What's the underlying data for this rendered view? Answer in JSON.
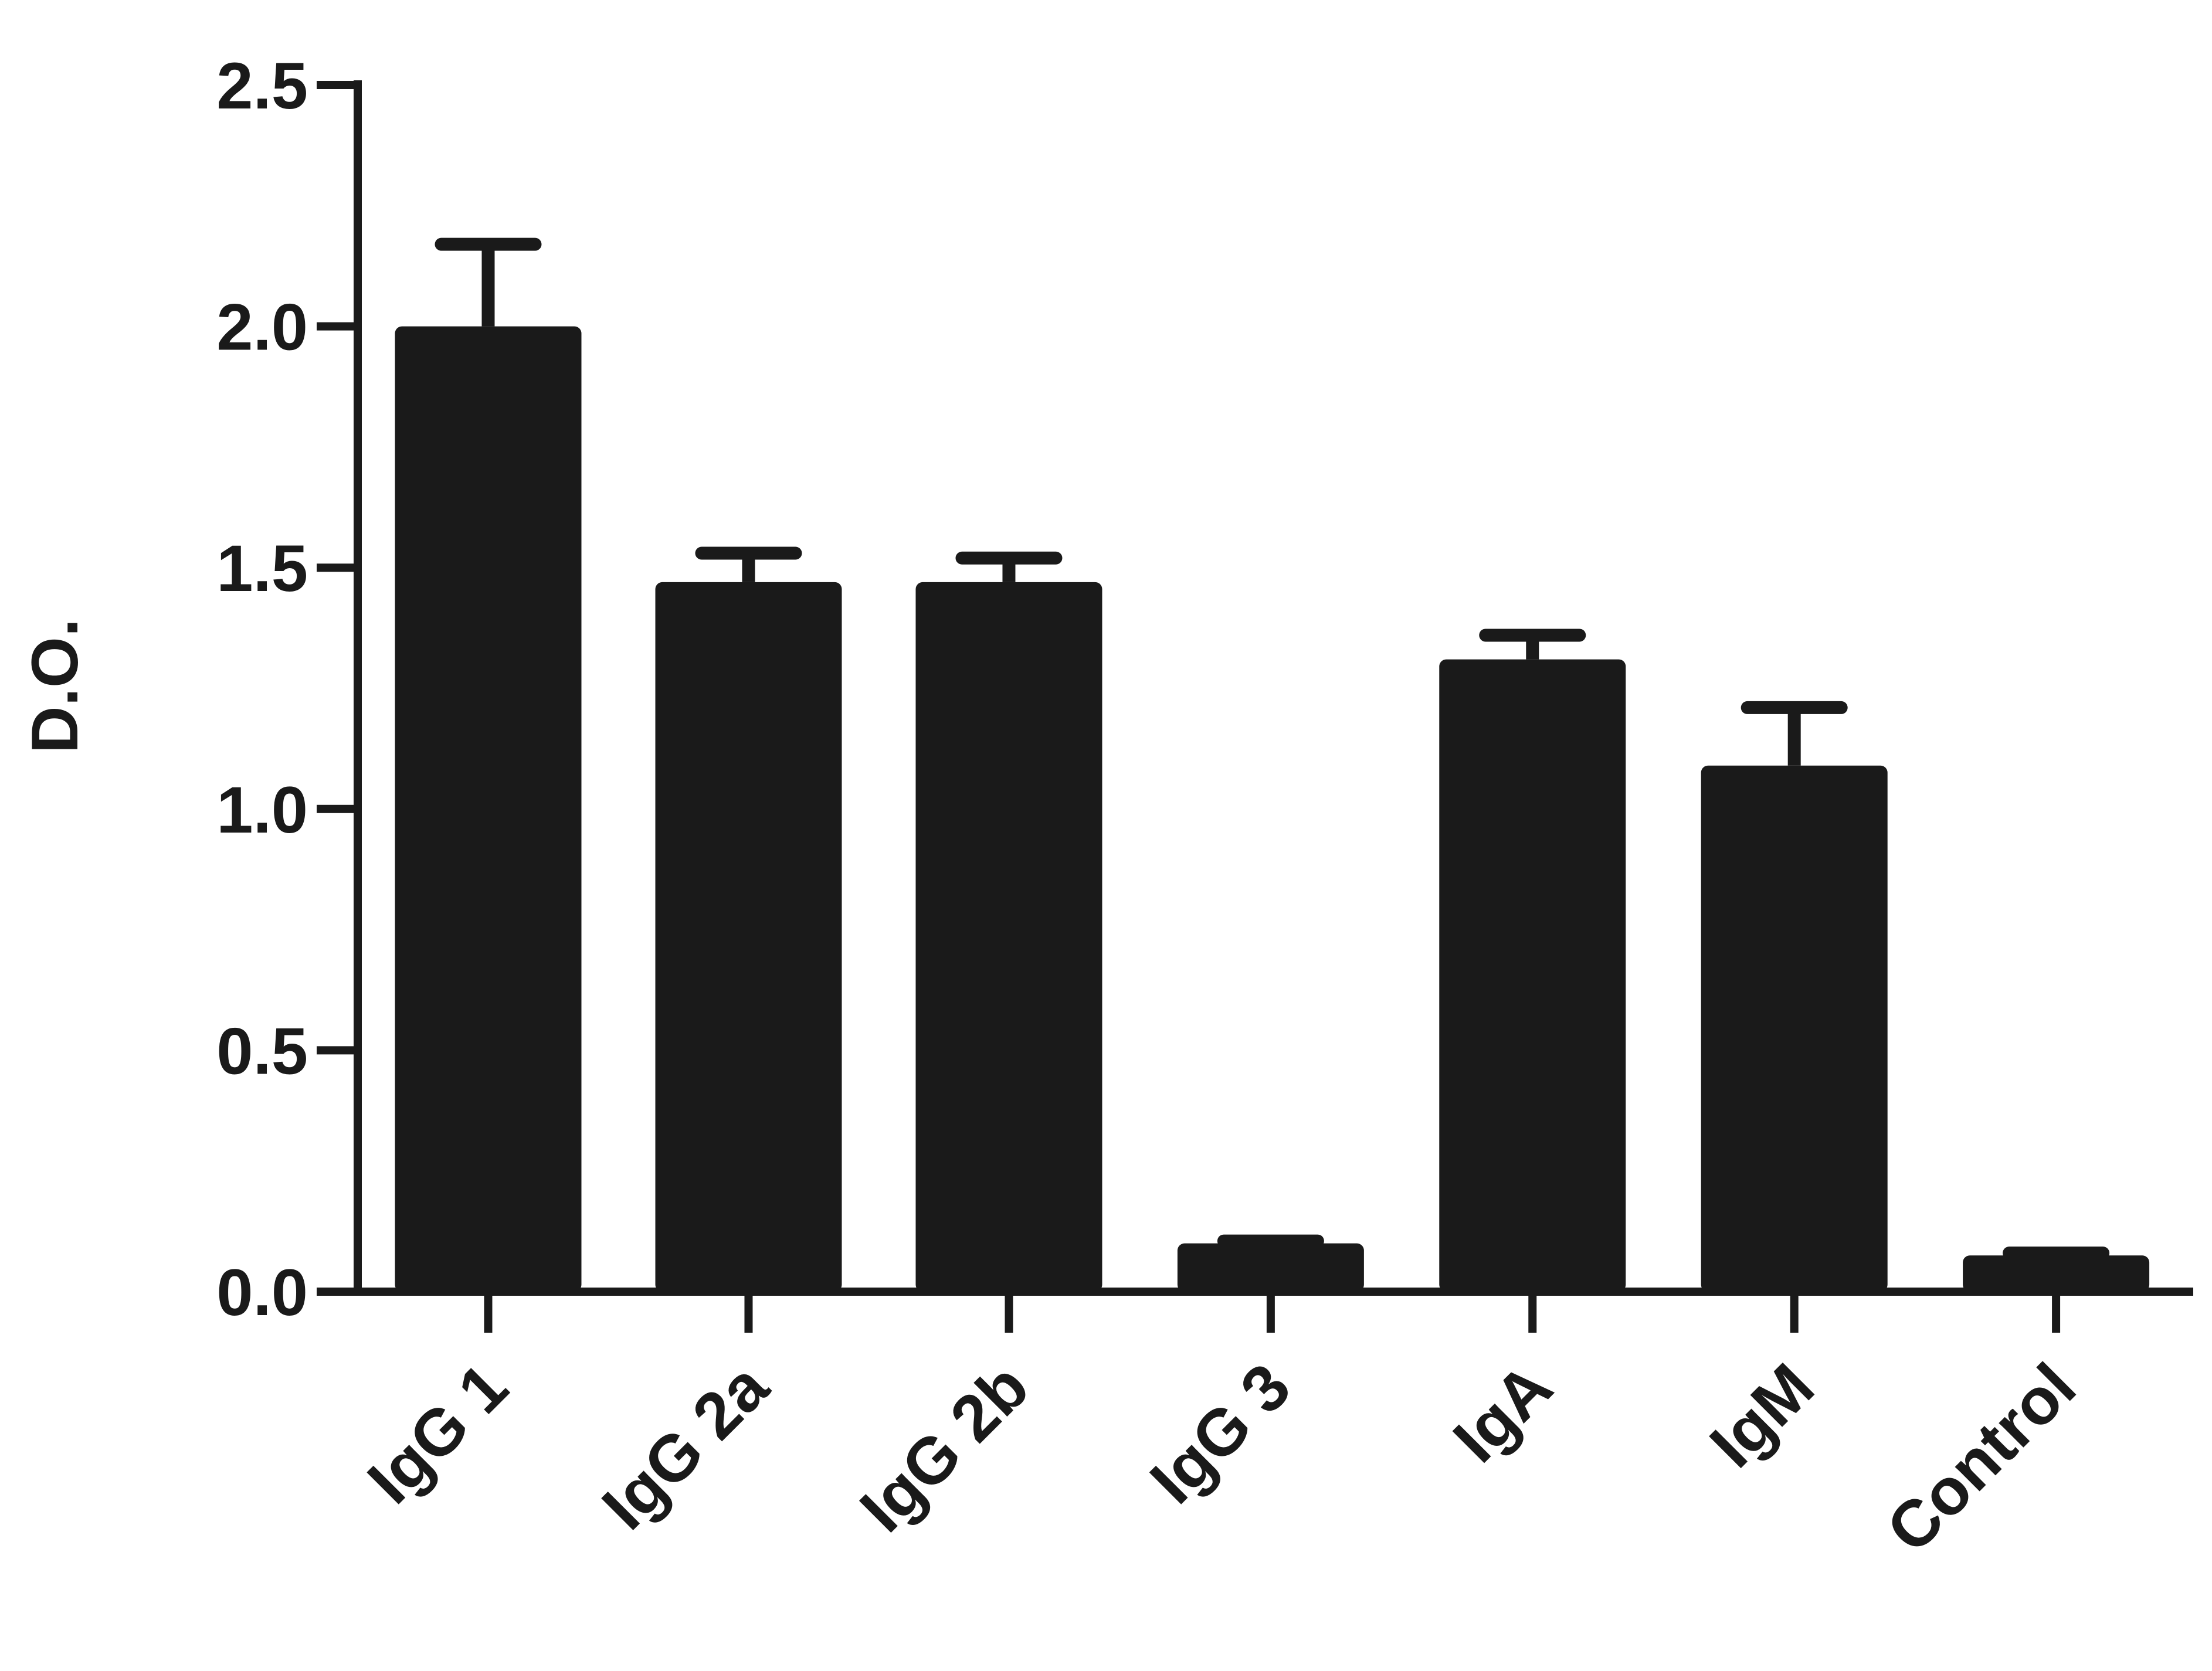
{
  "chart_data": {
    "type": "bar",
    "title": "",
    "xlabel": "",
    "ylabel": "D.O.",
    "ylim": [
      0,
      2.5
    ],
    "yticks": [
      "0.0",
      "0.5",
      "1.0",
      "1.5",
      "2.0",
      "2.5"
    ],
    "grid": false,
    "categories": [
      "IgG 1",
      "IgG 2a",
      "IgG 2b",
      "IgG 3",
      "IgA",
      "IgM",
      "Control"
    ],
    "values": [
      2.0,
      1.47,
      1.47,
      0.1,
      1.31,
      1.09,
      0.075
    ],
    "error_upper": [
      2.17,
      1.53,
      1.52,
      0.105,
      1.36,
      1.21,
      0.08
    ],
    "bar_color": "#1a1a1a"
  }
}
